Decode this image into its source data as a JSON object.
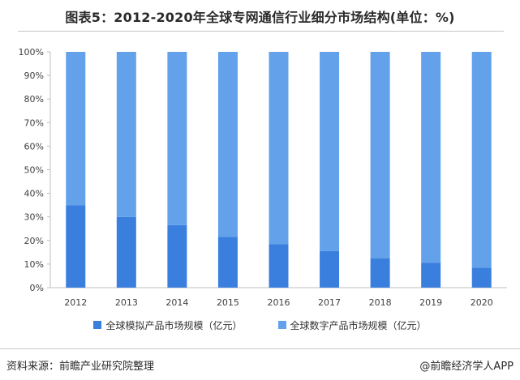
{
  "header": {
    "title": "图表5：2012-2020年全球专网通信行业细分市场结构(单位：%)"
  },
  "footer": {
    "source": "资料来源：前瞻产业研究院整理",
    "credit": "@前瞻经济学人APP"
  },
  "colors": {
    "analog": "#3a7fde",
    "digital": "#63a1ea",
    "axis": "#bfbfbf",
    "text": "#404040"
  },
  "chart_data": {
    "type": "bar",
    "stacked": true,
    "percent": true,
    "title": "图表5：2012-2020年全球专网通信行业细分市场结构(单位：%)",
    "categories": [
      "2012",
      "2013",
      "2014",
      "2015",
      "2016",
      "2017",
      "2018",
      "2019",
      "2020"
    ],
    "yticks": [
      "0%",
      "10%",
      "20%",
      "30%",
      "40%",
      "50%",
      "60%",
      "70%",
      "80%",
      "90%",
      "100%"
    ],
    "ylim": [
      0,
      100
    ],
    "grid": false,
    "legend_position": "bottom",
    "series": [
      {
        "name": "全球模拟产品市场规模（亿元）",
        "values": [
          35,
          30,
          26.5,
          21.5,
          18.5,
          15.5,
          12.5,
          10.5,
          8.5
        ]
      },
      {
        "name": "全球数字产品市场规模（亿元）",
        "values": [
          65,
          70,
          73.5,
          78.5,
          81.5,
          84.5,
          87.5,
          89.5,
          91.5
        ]
      }
    ]
  }
}
